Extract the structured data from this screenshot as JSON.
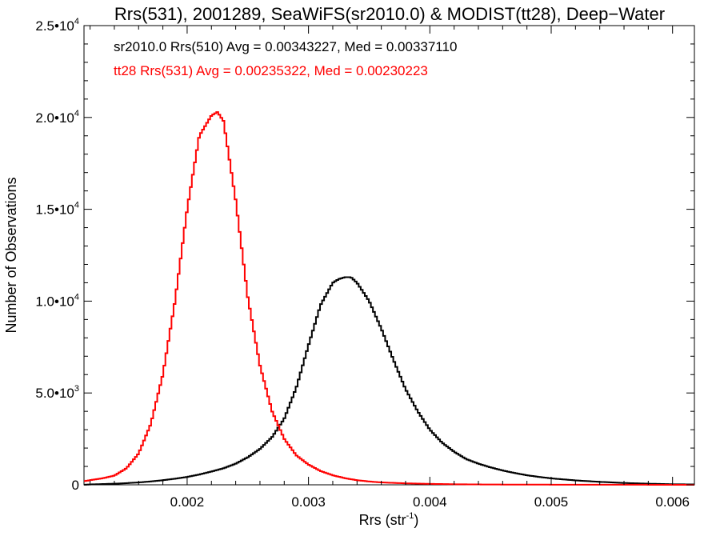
{
  "chart_data": {
    "type": "histogram",
    "title": "Rrs(531), 2001289, SeaWiFS(sr2010.0) & MODIST(tt28), Deep−Water",
    "xlabel": "Rrs (str",
    "xlabel_sup": "-1",
    "xlabel_close": ")",
    "ylabel": "Number of Observations",
    "xlim": [
      0.00115,
      0.00618
    ],
    "ylim": [
      0,
      25000
    ],
    "x_ticks": [
      {
        "value": 0.002,
        "label": "0.002"
      },
      {
        "value": 0.003,
        "label": "0.003"
      },
      {
        "value": 0.004,
        "label": "0.004"
      },
      {
        "value": 0.005,
        "label": "0.005"
      },
      {
        "value": 0.006,
        "label": "0.006"
      }
    ],
    "y_ticks": [
      {
        "value": 0,
        "mant": "0",
        "exp": ""
      },
      {
        "value": 5000,
        "mant": "5.0•10",
        "exp": "3"
      },
      {
        "value": 10000,
        "mant": "1.0•10",
        "exp": "4"
      },
      {
        "value": 15000,
        "mant": "1.5•10",
        "exp": "4"
      },
      {
        "value": 20000,
        "mant": "2.0•10",
        "exp": "4"
      },
      {
        "value": 25000,
        "mant": "2.5•10",
        "exp": "4"
      }
    ],
    "grid": false,
    "legend": [
      {
        "text": "sr2010.0 Rrs(510) Avg = 0.00343227, Med = 0.00337110",
        "color": "#000000"
      },
      {
        "text": "tt28 Rrs(531) Avg = 0.00235322, Med = 0.00230223",
        "color": "#ff0000"
      }
    ],
    "series": [
      {
        "name": "sr2010.0 Rrs(510)",
        "color": "#000000",
        "x": [
          0.00115,
          0.0012,
          0.0013,
          0.0014,
          0.0015,
          0.0016,
          0.0017,
          0.0018,
          0.0019,
          0.002,
          0.0021,
          0.0022,
          0.0023,
          0.0024,
          0.0025,
          0.0026,
          0.0027,
          0.0028,
          0.0029,
          0.003,
          0.0031,
          0.0032,
          0.00325,
          0.0033,
          0.00335,
          0.0034,
          0.0035,
          0.0036,
          0.0037,
          0.0038,
          0.0039,
          0.004,
          0.0041,
          0.0042,
          0.0043,
          0.0044,
          0.0045,
          0.0046,
          0.0047,
          0.0048,
          0.0049,
          0.005,
          0.0052,
          0.0054,
          0.0056,
          0.0058,
          0.006,
          0.00618
        ],
        "y": [
          0,
          20,
          40,
          60,
          90,
          130,
          180,
          250,
          330,
          430,
          560,
          720,
          900,
          1150,
          1500,
          1950,
          2600,
          3600,
          5300,
          7600,
          9800,
          11000,
          11200,
          11300,
          11300,
          11000,
          10000,
          8500,
          6800,
          5200,
          4000,
          3000,
          2300,
          1800,
          1400,
          1150,
          950,
          780,
          640,
          520,
          430,
          350,
          240,
          160,
          100,
          60,
          30,
          20
        ]
      },
      {
        "name": "tt28 Rrs(531)",
        "color": "#ff0000",
        "x": [
          0.00115,
          0.0012,
          0.0013,
          0.0014,
          0.0015,
          0.0016,
          0.0017,
          0.0018,
          0.0019,
          0.002,
          0.0021,
          0.0022,
          0.00225,
          0.0023,
          0.0024,
          0.0025,
          0.0026,
          0.0027,
          0.0028,
          0.0029,
          0.003,
          0.0031,
          0.0032,
          0.0033,
          0.0034,
          0.0035,
          0.0036,
          0.0038,
          0.004,
          0.0042,
          0.0045,
          0.005,
          0.0055,
          0.006,
          0.00618
        ],
        "y": [
          200,
          250,
          350,
          500,
          900,
          1700,
          3300,
          6000,
          10000,
          15000,
          19000,
          20100,
          20300,
          19800,
          15500,
          10200,
          6500,
          4000,
          2500,
          1600,
          1100,
          750,
          520,
          360,
          250,
          180,
          130,
          80,
          50,
          30,
          15,
          8,
          4,
          2,
          1
        ]
      }
    ]
  }
}
